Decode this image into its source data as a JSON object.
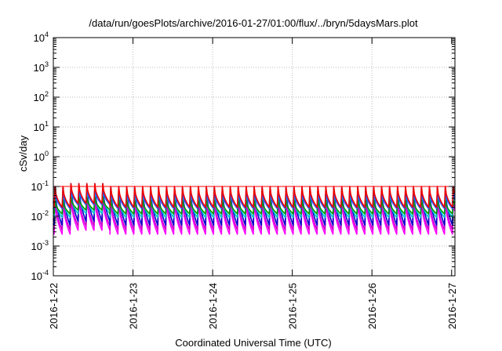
{
  "chart_data": {
    "type": "line",
    "title": "/data/run/goesPlots/archive/2016-01-27/01:00/flux/../bryn/5daysMars.plot",
    "xlabel": "Coordinated Universal Time (UTC)",
    "ylabel": "cSv/day",
    "x_range": [
      "2016-01-22T00:00",
      "2016-01-27T01:00"
    ],
    "x_ticks": [
      "2016-1-22",
      "2016-1-23",
      "2016-1-24",
      "2016-1-25",
      "2016-1-26",
      "2016-1-27"
    ],
    "y_scale": "log",
    "ylim": [
      0.0001,
      10000
    ],
    "y_ticks": [
      {
        "base": "10",
        "exp": "-4"
      },
      {
        "base": "10",
        "exp": "-3"
      },
      {
        "base": "10",
        "exp": "-2"
      },
      {
        "base": "10",
        "exp": "-1"
      },
      {
        "base": "10",
        "exp": "0"
      },
      {
        "base": "10",
        "exp": "1"
      },
      {
        "base": "10",
        "exp": "2"
      },
      {
        "base": "10",
        "exp": "3"
      },
      {
        "base": "10",
        "exp": "4"
      }
    ],
    "grid": true,
    "reference_line": {
      "y": 0.1,
      "color": "#ff0000"
    },
    "pattern": {
      "period_hours": 2.4,
      "first_peak_hour": 0.5,
      "shape": "sawtooth: sharp rise to a peak, then decay over each period"
    },
    "series": [
      {
        "color": "#ff00ff",
        "peak": 0.04,
        "trough": 0.0025
      },
      {
        "color": "#cc00cc",
        "peak": 0.05,
        "trough": 0.0035
      },
      {
        "color": "#0000cc",
        "peak": 0.1,
        "trough": 0.005
      },
      {
        "color": "#00cccc",
        "peak": 0.045,
        "trough": 0.009
      },
      {
        "color": "#009900",
        "peak": 0.035,
        "trough": 0.012
      },
      {
        "color": "#2255ff",
        "peak": 0.07,
        "trough": 0.018
      },
      {
        "color": "#ee0000",
        "peak": 0.1,
        "trough": 0.02
      }
    ],
    "enhanced_interval": {
      "start": "2016-01-22T03:00",
      "end": "2016-01-22T17:00",
      "factor": 1.25,
      "trough_factor": 1.35
    }
  }
}
